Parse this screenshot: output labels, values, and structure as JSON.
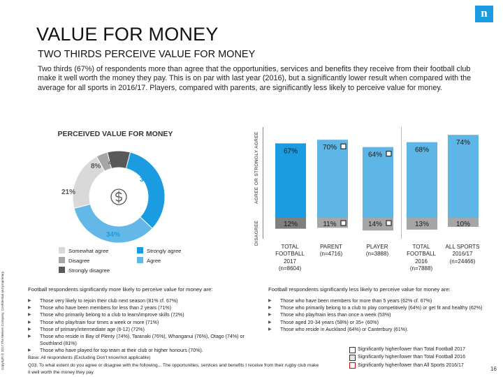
{
  "header": {
    "title": "VALUE FOR MONEY",
    "subtitle": "TWO THIRDS PERCEIVE VALUE FOR MONEY",
    "intro": "Two thirds (67%) of respondents more than agree that the opportunities, services and benefits they receive from their football club make it well worth the money they pay. This is on par with last year (2016), but a significantly lower result when compared with the average for all sports in 2016/17. Players, compared with parents, are significantly less likely to perceive value for money.",
    "logo_glyph": "n",
    "copyright": "Copyright © 2017 The Nielsen Company. Confidential and proprietary."
  },
  "pie": {
    "title": "PERCEIVED VALUE FOR MONEY",
    "center_icon": "dollar-sign-icon",
    "slices": [
      {
        "name": "Strongly agree",
        "value": 33,
        "label": "33%",
        "color": "#1b9be0"
      },
      {
        "name": "Agree",
        "value": 34,
        "label": "34%",
        "color": "#64b8e8"
      },
      {
        "name": "Somewhat agree",
        "value": 21,
        "label": "21%",
        "color": "#d9d9d9"
      },
      {
        "name": "Disagree",
        "value": 4,
        "label": "4%",
        "color": "#a6a6a6"
      },
      {
        "name": "Strongly disagree",
        "value": 8,
        "label": "8%",
        "color": "#595959"
      }
    ],
    "legend": [
      {
        "label": "Somewhat agree",
        "color": "#d9d9d9"
      },
      {
        "label": "Strongly agree",
        "color": "#1b9be0"
      },
      {
        "label": "Disagree",
        "color": "#a6a6a6"
      },
      {
        "label": "Agree",
        "color": "#64b8e8"
      },
      {
        "label": "Strongly disagree",
        "color": "#595959"
      }
    ]
  },
  "chart_data": {
    "type": "bar",
    "axis_agree": "AGREE OR STRONGLY AGREE",
    "axis_disagree": "DISAGREE",
    "categories": [
      "TOTAL FOOTBALL 2017 (n=8604)",
      "PARENT (n=4716)",
      "PLAYER (n=3888)",
      "TOTAL FOOTBALL 2016 (n=7888)",
      "ALL SPORTS 2016/17 (n=24466)"
    ],
    "category_lines": [
      [
        "TOTAL",
        "FOOTBALL",
        "2017",
        "(n=8604)"
      ],
      [
        "PARENT",
        "(n=4716)"
      ],
      [
        "PLAYER",
        "(n=3888)"
      ],
      [
        "TOTAL",
        "FOOTBALL",
        "2016",
        "(n=7888)"
      ],
      [
        "ALL SPORTS",
        "2016/17",
        "(n=24466)"
      ]
    ],
    "series": [
      {
        "name": "Agree or strongly agree",
        "values": [
          67,
          70,
          64,
          68,
          74
        ],
        "labels": [
          "67%",
          "70%",
          "64%",
          "68%",
          "74%"
        ],
        "color": "#1b9be0"
      },
      {
        "name": "Disagree",
        "values": [
          12,
          11,
          14,
          13,
          10
        ],
        "labels": [
          "12%",
          "11%",
          "14%",
          "13%",
          "10%"
        ],
        "color": "#7f7f7f"
      }
    ],
    "highlight_marker": [
      false,
      true,
      true,
      false,
      false
    ],
    "bar_tints": [
      "#1b9be0",
      "#5eb6e6",
      "#5eb6e6",
      "#5eb6e6",
      "#5eb6e6"
    ],
    "disagree_tints": [
      "#7f7f7f",
      "#a6a6a6",
      "#a6a6a6",
      "#a6a6a6",
      "#a6a6a6"
    ]
  },
  "notes": {
    "more_head": "Football respondents significantly more likely to perceive value for money are:",
    "more_items": [
      "Those very likely to rejoin their club next season (81% cf. 67%)",
      "Those who have been members for less than 2 years (71%)",
      "Those who primarily belong to a club to learn/improve skills (72%)",
      "Those who play/train four times a week or more (71%)",
      "Those of primary/intermediate age (6-12) (72%)",
      "Those who reside in Bay of Plenty (74%), Taranaki (76%), Whanganui (76%), Otago (74%) or Southland (81%)",
      "Those who have played for top team at their club or higher honours (70%)."
    ],
    "less_head": "Football respondents significantly less likely to perceive value for money are:",
    "less_items": [
      "Those who have been members for more than 5 years (62% cf. 67%)",
      "Those who primarily belong to a club to play competitively (64%) or get fit and healthy (62%)",
      "Those who play/train less than once a week (53%)",
      "Those aged 20-34 years (58%) or 35+ (60%)",
      "Those who reside in Auckland (64%) or Canterbury (61%)."
    ]
  },
  "footer": {
    "base": "Base: All respondents (Excluding Don't know/not applicable)",
    "question": "Q33. To what extent do you agree or disagree with the following... The opportunities, services and benefits I receive from their rugby club make it well worth the money they pay",
    "key_1": "Significantly higher/lower than Total Football 2017",
    "key_2": "Significantly higher/lower than Total Football 2016",
    "key_3": "Significantly higher/lower than All Sports 2016/17",
    "page": "16"
  }
}
